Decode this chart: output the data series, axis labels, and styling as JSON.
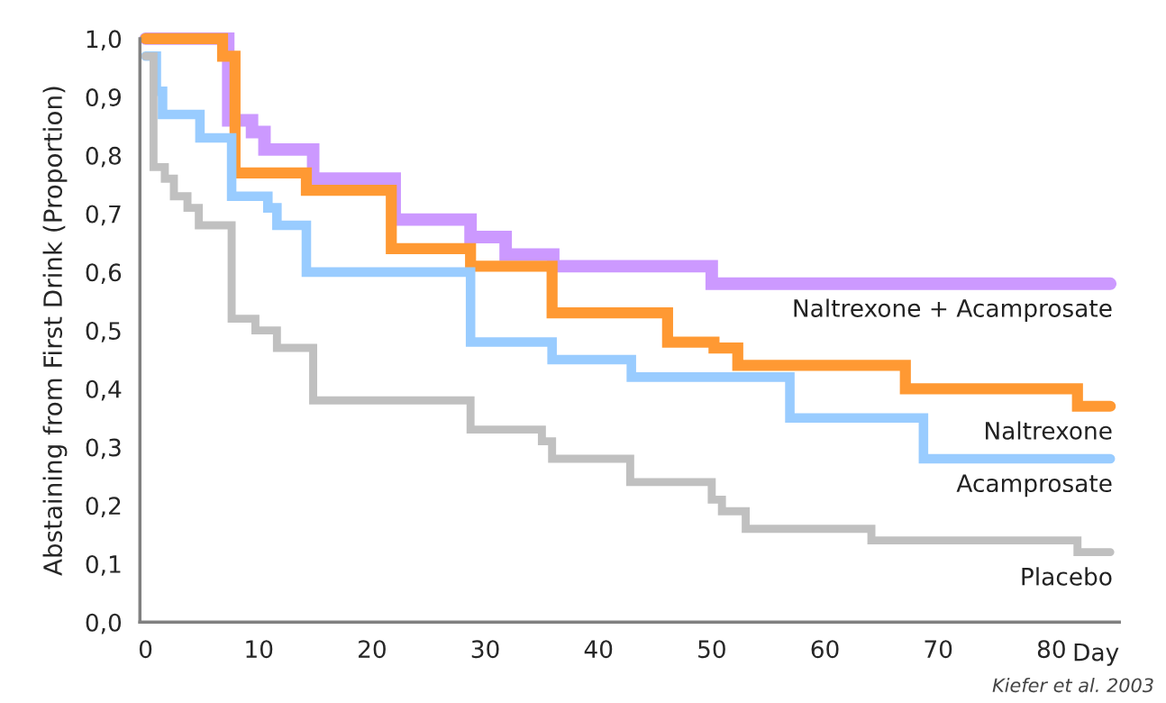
{
  "chart_data": {
    "type": "step",
    "ylabel": "Abstaining from First Drink (Proportion)",
    "xlabel": "Day",
    "xlim": [
      -0.5,
      86
    ],
    "xticks": [
      0,
      10,
      20,
      30,
      40,
      50,
      60,
      70,
      80
    ],
    "ylim": [
      0,
      1.0
    ],
    "yticks": [
      {
        "value": 0,
        "label": "0,0"
      },
      {
        "value": 0.1,
        "label": "0,1"
      },
      {
        "value": 0.2,
        "label": "0,2"
      },
      {
        "value": 0.3,
        "label": "0,3"
      },
      {
        "value": 0.4,
        "label": "0,4"
      },
      {
        "value": 0.5,
        "label": "0,5"
      },
      {
        "value": 0.6,
        "label": "0,6"
      },
      {
        "value": 0.7,
        "label": "0,7"
      },
      {
        "value": 0.8,
        "label": "0,8"
      },
      {
        "value": 0.9,
        "label": "0,9"
      },
      {
        "value": 1.0,
        "label": "1,0"
      }
    ],
    "grid": false,
    "legend": false,
    "marker": "none",
    "line_style": "solid",
    "annotations": [
      "Kiefer et al. 2003"
    ],
    "series": [
      {
        "name": "Naltrexone + Acamprosate",
        "color": "#cc99ff",
        "x": [
          0,
          7.3,
          9.4,
          10.5,
          14.8,
          22.0,
          28.7,
          31.8,
          36.0,
          50.0,
          85.2
        ],
        "values": [
          1.0,
          0.86,
          0.84,
          0.81,
          0.76,
          0.69,
          0.66,
          0.63,
          0.61,
          0.58,
          0.58
        ]
      },
      {
        "name": "Naltrexone",
        "color": "#ff9933",
        "x": [
          0,
          6.8,
          7.9,
          14.2,
          21.7,
          28.7,
          35.9,
          46.1,
          50.2,
          52.3,
          67.1,
          82.3,
          85.2
        ],
        "values": [
          1.0,
          0.97,
          0.77,
          0.74,
          0.64,
          0.61,
          0.53,
          0.48,
          0.47,
          0.44,
          0.4,
          0.37,
          0.37
        ]
      },
      {
        "name": "Acamprosate",
        "color": "#99ccff",
        "x": [
          0,
          0.95,
          1.5,
          4.8,
          7.6,
          10.8,
          11.6,
          14.2,
          28.7,
          35.9,
          42.9,
          56.9,
          68.7,
          85.2
        ],
        "values": [
          0.97,
          0.91,
          0.87,
          0.83,
          0.73,
          0.71,
          0.68,
          0.6,
          0.48,
          0.45,
          0.42,
          0.35,
          0.28,
          0.28
        ]
      },
      {
        "name": "Placebo",
        "color": "#c0c0c0",
        "x": [
          0,
          0.7,
          1.7,
          2.5,
          3.7,
          4.7,
          7.6,
          9.7,
          11.6,
          14.8,
          28.7,
          35.0,
          35.9,
          42.8,
          50.0,
          50.9,
          53.0,
          64.1,
          82.3,
          85.2
        ],
        "values": [
          0.97,
          0.78,
          0.76,
          0.73,
          0.71,
          0.68,
          0.52,
          0.5,
          0.47,
          0.38,
          0.33,
          0.31,
          0.28,
          0.24,
          0.21,
          0.19,
          0.16,
          0.14,
          0.12,
          0.12
        ]
      }
    ]
  }
}
